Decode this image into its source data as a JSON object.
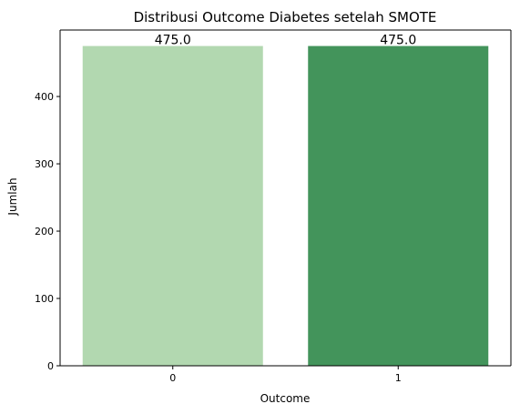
{
  "chart_data": {
    "type": "bar",
    "title": "Distribusi Outcome Diabetes setelah SMOTE",
    "xlabel": "Outcome",
    "ylabel": "Jumlah",
    "categories": [
      "0",
      "1"
    ],
    "values": [
      475,
      475
    ],
    "bar_labels": [
      "475.0",
      "475.0"
    ],
    "colors": [
      "#b2d8b0",
      "#43945b"
    ],
    "ylim": [
      0,
      498.75
    ],
    "yticks": [
      0,
      100,
      200,
      300,
      400
    ],
    "ytick_labels": [
      "0",
      "100",
      "200",
      "300",
      "400"
    ],
    "grid": false,
    "legend": "none"
  }
}
